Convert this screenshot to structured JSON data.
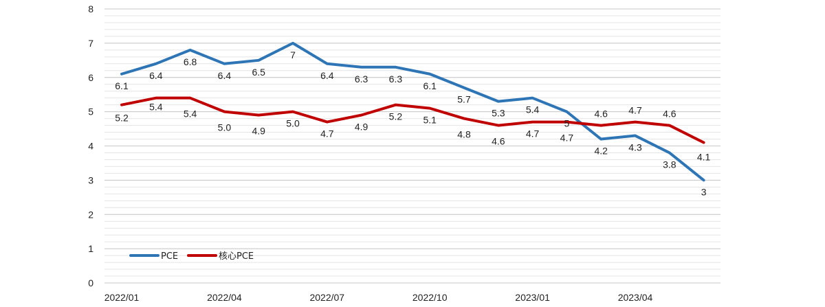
{
  "chart_data": {
    "type": "line",
    "title": "",
    "xlabel": "",
    "ylabel": "",
    "ylim": [
      0,
      8
    ],
    "yticks": [
      0,
      1,
      2,
      3,
      4,
      5,
      6,
      7,
      8
    ],
    "categories": [
      "2022/01",
      "2022/02",
      "2022/03",
      "2022/04",
      "2022/05",
      "2022/06",
      "2022/07",
      "2022/08",
      "2022/09",
      "2022/10",
      "2022/11",
      "2022/12",
      "2023/01",
      "2023/02",
      "2023/03",
      "2023/04",
      "2023/05",
      "2023/06"
    ],
    "x_tick_labels": [
      "2022/01",
      "2022/04",
      "2022/07",
      "2022/10",
      "2023/01",
      "2023/04"
    ],
    "grid": true,
    "legend_position": "bottom-left",
    "series": [
      {
        "name": "PCE",
        "color": "#2e75b6",
        "values": [
          6.1,
          6.4,
          6.8,
          6.4,
          6.5,
          7,
          6.4,
          6.3,
          6.3,
          6.1,
          5.7,
          5.3,
          5.4,
          5,
          4.2,
          4.3,
          3.8,
          3
        ],
        "labels": [
          "6.1",
          "6.4",
          "6.8",
          "6.4",
          "6.5",
          "7",
          "6.4",
          "6.3",
          "6.3",
          "6.1",
          "5.7",
          "5.3",
          "5.4",
          "5",
          "4.2",
          "4.3",
          "3.8",
          "3"
        ]
      },
      {
        "name": "核心PCE",
        "color": "#c00000",
        "values": [
          5.2,
          5.4,
          5.4,
          5.0,
          4.9,
          5.0,
          4.7,
          4.9,
          5.2,
          5.1,
          4.8,
          4.6,
          4.7,
          4.7,
          4.6,
          4.7,
          4.6,
          4.1
        ],
        "labels": [
          "5.2",
          "5.4",
          "5.4",
          "5.0",
          "4.9",
          "5.0",
          "4.7",
          "4.9",
          "5.2",
          "5.1",
          "4.8",
          "4.6",
          "4.7",
          "4.7",
          "4.6",
          "4.7",
          "4.6",
          "4.1"
        ]
      }
    ]
  }
}
